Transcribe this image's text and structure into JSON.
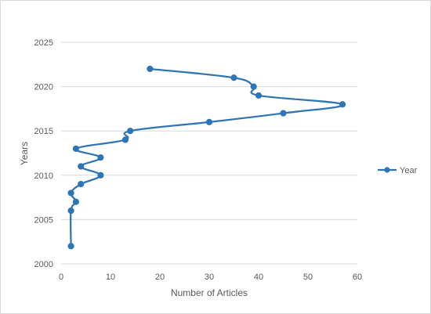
{
  "chart_data": {
    "type": "scatter",
    "title": "",
    "xlabel": "Number of Articles",
    "ylabel": "Years",
    "xlim": [
      0,
      60
    ],
    "ylim": [
      2000,
      2025
    ],
    "x_ticks": [
      "0",
      "10",
      "20",
      "30",
      "40",
      "50",
      "60"
    ],
    "y_ticks": [
      "2000",
      "2005",
      "2010",
      "2015",
      "2020",
      "2025"
    ],
    "grid": "horizontal",
    "legend_position": "right",
    "series": [
      {
        "name": "Year",
        "color": "#2e75b6",
        "smooth": true,
        "marker": "circle",
        "points": [
          {
            "x": 2,
            "y": 2002
          },
          {
            "x": 2,
            "y": 2006
          },
          {
            "x": 3,
            "y": 2007
          },
          {
            "x": 2,
            "y": 2008
          },
          {
            "x": 4,
            "y": 2009
          },
          {
            "x": 8,
            "y": 2010
          },
          {
            "x": 4,
            "y": 2011
          },
          {
            "x": 8,
            "y": 2012
          },
          {
            "x": 3,
            "y": 2013
          },
          {
            "x": 13,
            "y": 2014
          },
          {
            "x": 14,
            "y": 2015
          },
          {
            "x": 30,
            "y": 2016
          },
          {
            "x": 45,
            "y": 2017
          },
          {
            "x": 57,
            "y": 2018
          },
          {
            "x": 40,
            "y": 2019
          },
          {
            "x": 39,
            "y": 2020
          },
          {
            "x": 35,
            "y": 2021
          },
          {
            "x": 18,
            "y": 2022
          }
        ]
      }
    ]
  },
  "colors": {
    "gridline": "#d9d9d9",
    "axis_text": "#595959",
    "series": "#2e75b6"
  }
}
